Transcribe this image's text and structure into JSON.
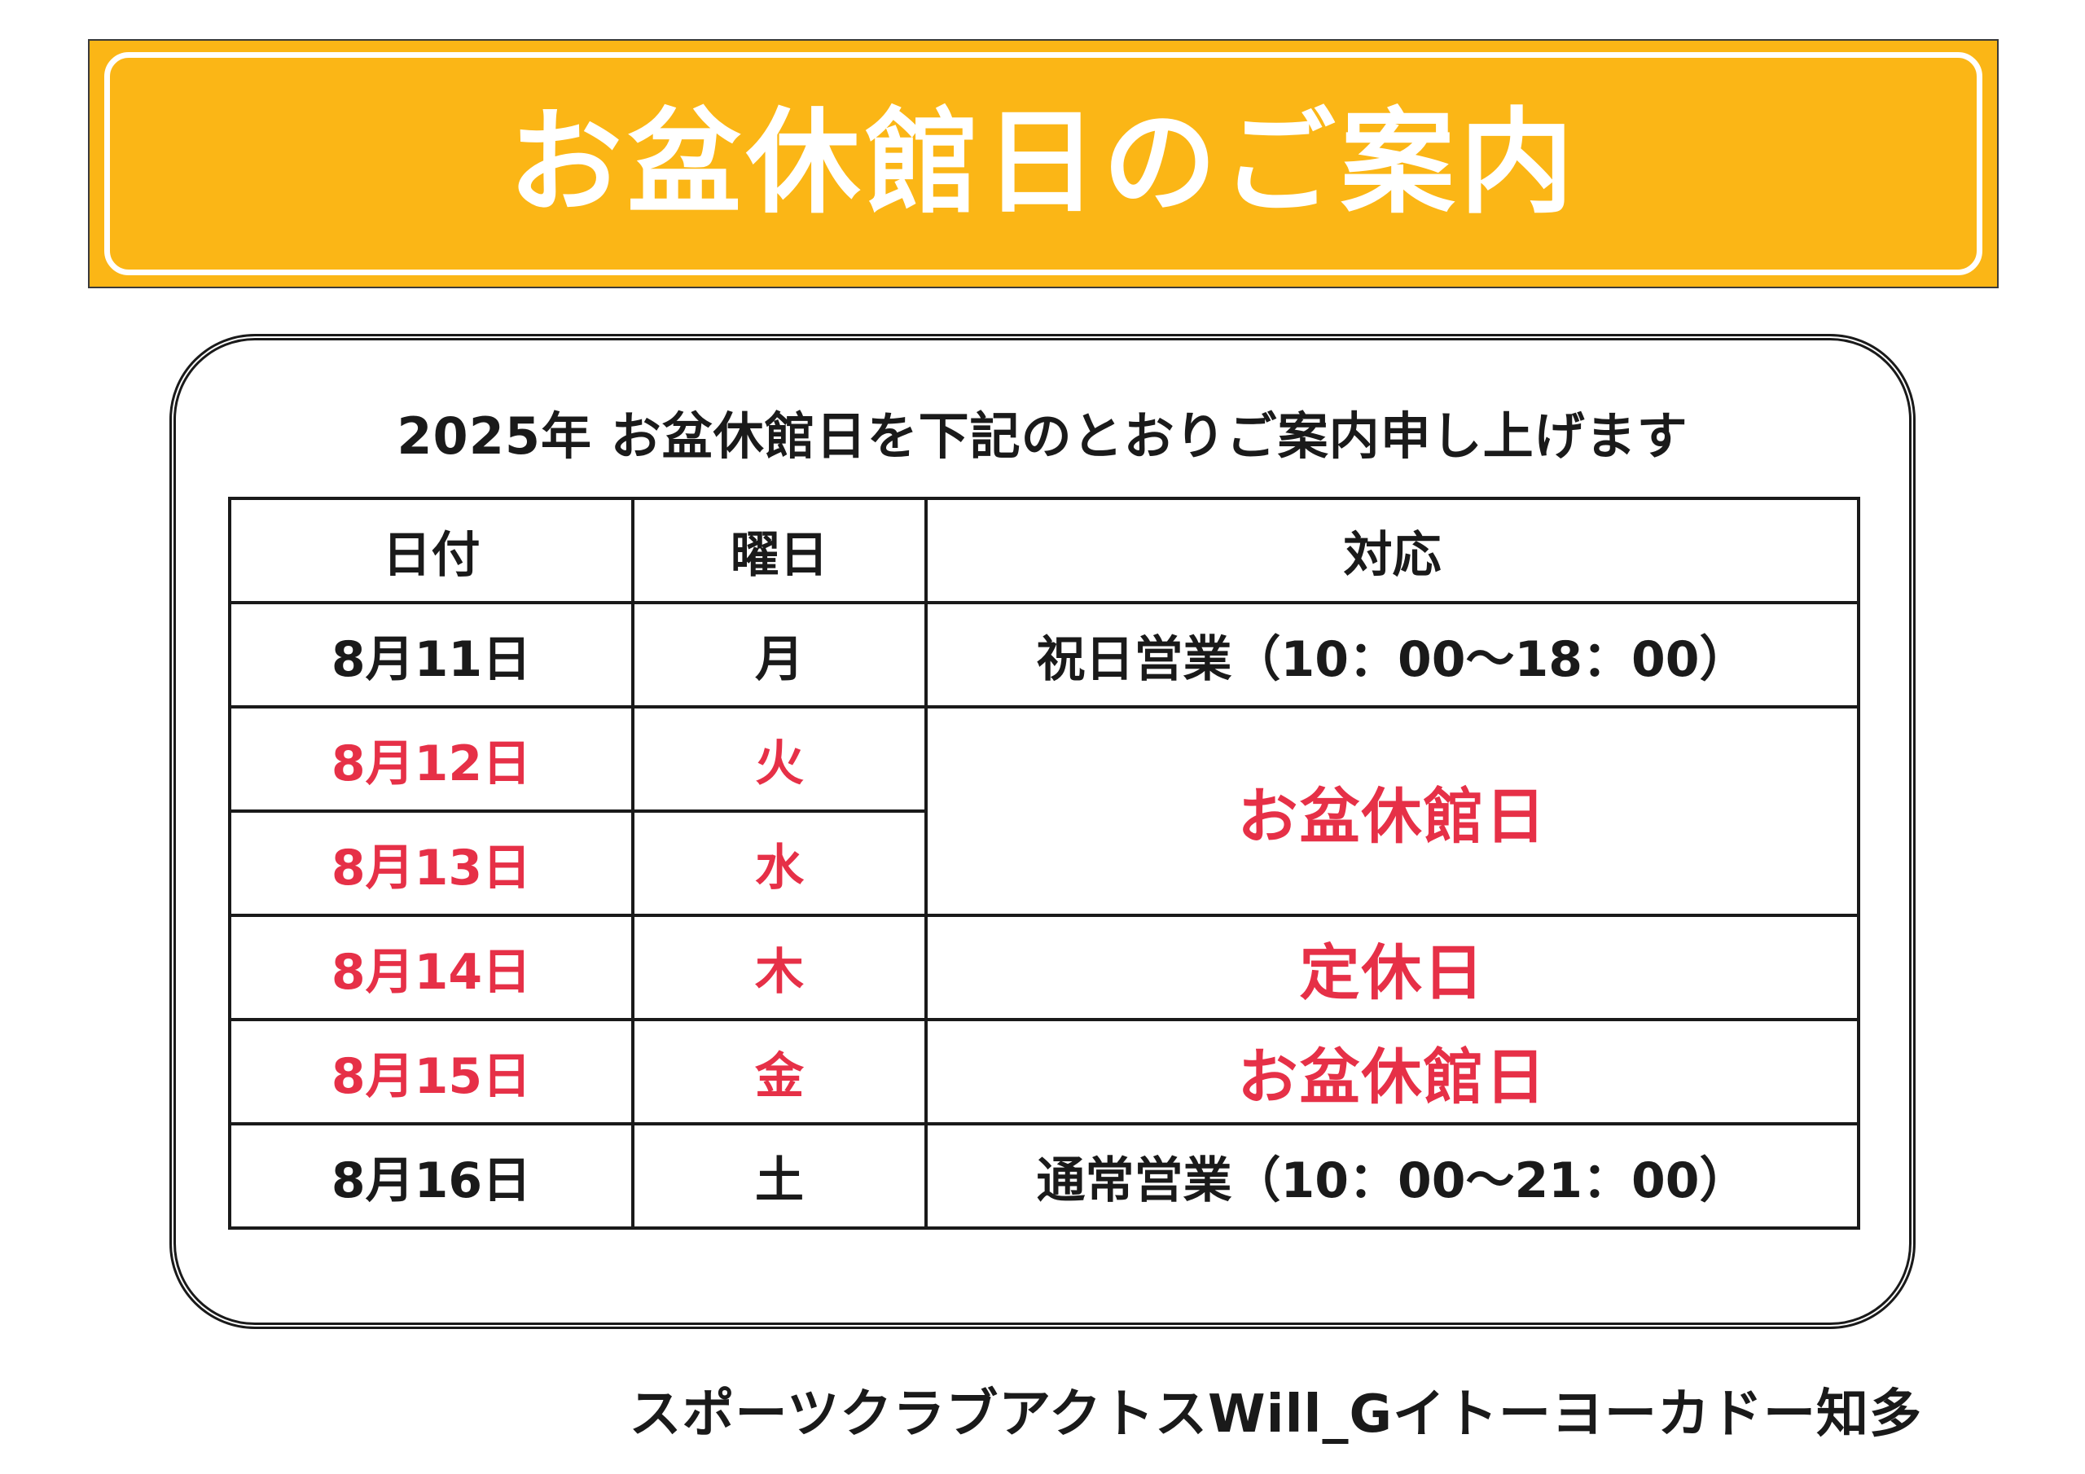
{
  "banner": {
    "title": "お盆休館日のご案内"
  },
  "subtitle": "2025年 お盆休館日を下記のとおりご案内申し上げます",
  "table": {
    "headers": {
      "date": "日付",
      "day": "曜日",
      "action": "対応"
    },
    "rows": [
      {
        "date": "8月11日",
        "day": "月",
        "action": "祝日営業（10：00～18：00）"
      },
      {
        "date": "8月12日",
        "day": "火",
        "action": "お盆休館日"
      },
      {
        "date": "8月13日",
        "day": "水"
      },
      {
        "date": "8月14日",
        "day": "木",
        "action": "定休日"
      },
      {
        "date": "8月15日",
        "day": "金",
        "action": "お盆休館日"
      },
      {
        "date": "8月16日",
        "day": "土",
        "action": "通常営業（10：00～21：00）"
      }
    ]
  },
  "footer": "スポーツクラブアクトスWill_Gイトーヨーカドー知多",
  "colors": {
    "banner": "#fbb616",
    "closed_text": "#e63047",
    "text": "#1a1a1a"
  }
}
